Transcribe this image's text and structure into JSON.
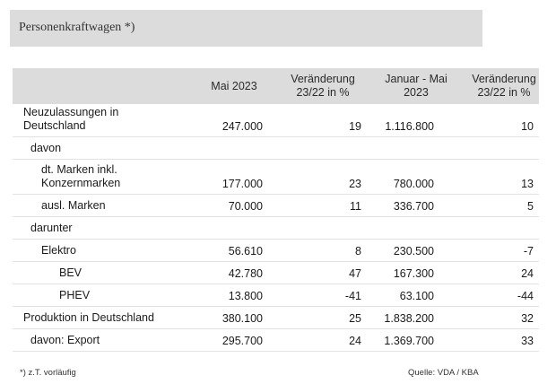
{
  "title": "Personenkraftwagen *)",
  "table": {
    "headers": [
      "",
      "Mai 2023",
      "Veränderung\n23/22 in %",
      "Januar - Mai\n2023",
      "Veränderung\n23/22 in %"
    ],
    "rows": [
      {
        "label": "Neuzulassungen in\nDeutschland",
        "indent": 0,
        "values": [
          "247.000",
          "19",
          "1.116.800",
          "10"
        ]
      },
      {
        "label": "davon",
        "indent": 1,
        "values": [
          "",
          "",
          "",
          ""
        ]
      },
      {
        "label": "dt. Marken inkl.\nKonzernmarken",
        "indent": 2,
        "values": [
          "177.000",
          "23",
          "780.000",
          "13"
        ]
      },
      {
        "label": "ausl. Marken",
        "indent": 2,
        "values": [
          "70.000",
          "11",
          "336.700",
          "5"
        ]
      },
      {
        "label": "darunter",
        "indent": 1,
        "values": [
          "",
          "",
          "",
          ""
        ]
      },
      {
        "label": "Elektro",
        "indent": 2,
        "values": [
          "56.610",
          "8",
          "230.500",
          "-7"
        ]
      },
      {
        "label": "BEV",
        "indent": 3,
        "values": [
          "42.780",
          "47",
          "167.300",
          "24"
        ]
      },
      {
        "label": "PHEV",
        "indent": 3,
        "values": [
          "13.800",
          "-41",
          "63.100",
          "-44"
        ]
      },
      {
        "label": "Produktion in Deutschland",
        "indent": 0,
        "values": [
          "380.100",
          "25",
          "1.838.200",
          "32"
        ]
      },
      {
        "label": "davon: Export",
        "indent": 1,
        "values": [
          "295.700",
          "24",
          "1.369.700",
          "33"
        ]
      }
    ]
  },
  "footnote": "*) z.T. vorläufig",
  "source": "Quelle: VDA / KBA"
}
